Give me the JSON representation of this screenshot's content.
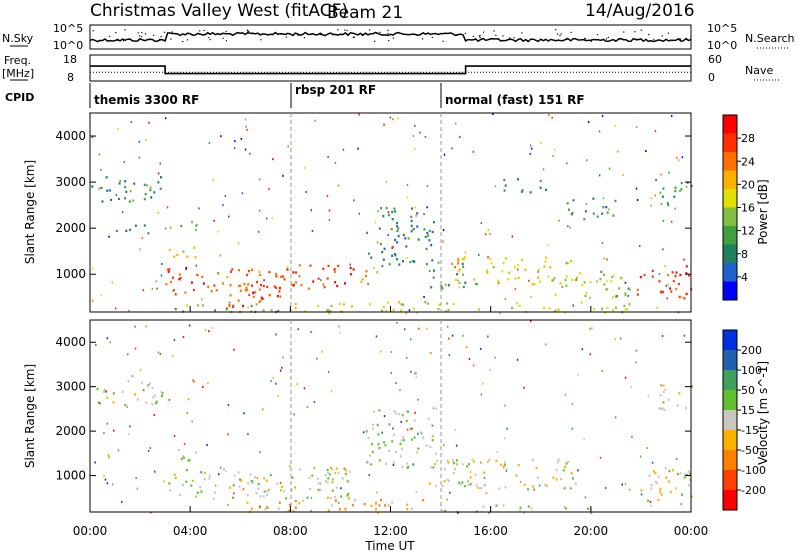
{
  "header": {
    "title": "Christmas Valley West (fitACF)",
    "beam": "Beam 21",
    "date": "14/Aug/2016"
  },
  "param_panels": {
    "nsky": {
      "label": "N.Sky",
      "yticks": [
        "10^5",
        "10^0"
      ]
    },
    "nsearch": {
      "label": "N.Search",
      "yticks": [
        "10^5",
        "10^0"
      ]
    },
    "freq": {
      "label_line1": "Freq.",
      "label_line2": "[MHz]",
      "yticks": [
        "18",
        "8"
      ]
    },
    "nave": {
      "label": "Nave",
      "yticks": [
        "60",
        "0"
      ]
    },
    "cpid": {
      "label": "CPID"
    }
  },
  "chart_data": [
    {
      "type": "line",
      "name": "noise-sky-search",
      "series": [
        {
          "name": "N.Sky"
        },
        {
          "name": "N.Search"
        }
      ],
      "ylim": [
        1,
        100000
      ],
      "log": true
    },
    {
      "type": "line",
      "name": "freq-nave",
      "series": [
        {
          "name": "Freq.",
          "points": [
            [
              0,
              14
            ],
            [
              3,
              14
            ],
            [
              3,
              10
            ],
            [
              15,
              10
            ],
            [
              15,
              14
            ],
            [
              24,
              14
            ]
          ]
        },
        {
          "name": "Nave",
          "points": [
            [
              0,
              20
            ],
            [
              24,
              20
            ]
          ]
        }
      ],
      "xlim": [
        0,
        24
      ]
    },
    {
      "type": "table",
      "name": "cpid",
      "modes": [
        {
          "label": "themis 3300 RF",
          "start": 0,
          "end": 8
        },
        {
          "label": "rbsp 201 RF",
          "start": 8,
          "end": 14
        },
        {
          "label": "normal (fast) 151 RF",
          "start": 14,
          "end": 24
        }
      ]
    },
    {
      "type": "heatmap",
      "name": "power",
      "ylabel": "Slant Range [km]",
      "yticks": [
        "4000",
        "3000",
        "2000",
        "1000"
      ],
      "ylim": [
        180,
        4500
      ],
      "xlim": [
        0,
        24
      ],
      "colorbar": {
        "label": "Power [dB]",
        "ticks": [
          "28",
          "24",
          "20",
          "16",
          "12",
          "8",
          "4"
        ],
        "range": [
          0,
          30
        ],
        "colors": [
          "#0000ff",
          "#2060d0",
          "#208060",
          "#40a040",
          "#80c040",
          "#e0e000",
          "#ffb000",
          "#ff7000",
          "#ff3000",
          "#ff0000"
        ]
      },
      "regions": [
        {
          "x0": 0,
          "x1": 2.9,
          "y0": 2600,
          "y1": 3150,
          "v": 9
        },
        {
          "x0": 0.8,
          "x1": 2.5,
          "y0": 1900,
          "y1": 2100,
          "v": 8
        },
        {
          "x0": 3,
          "x1": 4.4,
          "y0": 1350,
          "y1": 1650,
          "v": 18
        },
        {
          "x0": 3.5,
          "x1": 4.3,
          "y0": 1900,
          "y1": 2200,
          "v": 12
        },
        {
          "x0": 3,
          "x1": 7.9,
          "y0": 500,
          "y1": 1150,
          "v": 24
        },
        {
          "x0": 3,
          "x1": 8,
          "y0": 200,
          "y1": 450,
          "v": 12
        },
        {
          "x0": 5.5,
          "x1": 7.8,
          "y0": 300,
          "y1": 800,
          "v": 26
        },
        {
          "x0": 7.5,
          "x1": 10.5,
          "y0": 700,
          "y1": 1250,
          "v": 26
        },
        {
          "x0": 10.3,
          "x1": 11.5,
          "y0": 800,
          "y1": 1100,
          "v": 20
        },
        {
          "x0": 11,
          "x1": 13.8,
          "y0": 1200,
          "y1": 2500,
          "v": 8
        },
        {
          "x0": 13.5,
          "x1": 15,
          "y0": 700,
          "y1": 1300,
          "v": 10
        },
        {
          "x0": 14.5,
          "x1": 19.5,
          "y0": 800,
          "y1": 1400,
          "v": 18
        },
        {
          "x0": 18.5,
          "x1": 21.5,
          "y0": 500,
          "y1": 1100,
          "v": 14
        },
        {
          "x0": 21.8,
          "x1": 24,
          "y0": 450,
          "y1": 1200,
          "v": 26
        },
        {
          "x0": 8,
          "x1": 22,
          "y0": 180,
          "y1": 420,
          "v": 16
        },
        {
          "x0": 16.5,
          "x1": 18.5,
          "y0": 2800,
          "y1": 3100,
          "v": 9
        },
        {
          "x0": 19,
          "x1": 21,
          "y0": 2200,
          "y1": 2700,
          "v": 8
        },
        {
          "x0": 22.5,
          "x1": 24,
          "y0": 2500,
          "y1": 3100,
          "v": 12
        }
      ]
    },
    {
      "type": "heatmap",
      "name": "velocity",
      "xlabel": "Time UT",
      "ylabel": "Slant Range [km]",
      "xticks": [
        "00:00",
        "04:00",
        "08:00",
        "12:00",
        "16:00",
        "20:00",
        "00:00"
      ],
      "yticks": [
        "4000",
        "3000",
        "2000",
        "1000"
      ],
      "ylim": [
        180,
        4500
      ],
      "xlim": [
        0,
        24
      ],
      "colorbar": {
        "label": "Velocity [m s^-1]",
        "ticks": [
          "200",
          "100",
          "50",
          "15",
          "-15",
          "-50",
          "-100",
          "-200"
        ],
        "range": [
          -250,
          250
        ],
        "colors": [
          "#ff0000",
          "#ff4000",
          "#ff8000",
          "#ffb000",
          "#c8c8c0",
          "#60c030",
          "#40a060",
          "#2060b0",
          "#0030e0"
        ]
      },
      "regions": [
        {
          "x0": 0,
          "x1": 2.9,
          "y0": 2600,
          "y1": 3150,
          "v": 0
        },
        {
          "x0": 3,
          "x1": 4.4,
          "y0": 1350,
          "y1": 1650,
          "v": 0
        },
        {
          "x0": 3,
          "x1": 10.5,
          "y0": 500,
          "y1": 1200,
          "v": 0
        },
        {
          "x0": 5.8,
          "x1": 6.8,
          "y0": 750,
          "y1": 1000,
          "v": 40
        },
        {
          "x0": 11,
          "x1": 13.8,
          "y0": 1200,
          "y1": 2500,
          "v": 30
        },
        {
          "x0": 13.5,
          "x1": 19.5,
          "y0": 700,
          "y1": 1400,
          "v": 0
        },
        {
          "x0": 21.8,
          "x1": 24,
          "y0": 400,
          "y1": 1200,
          "v": 0
        },
        {
          "x0": 6,
          "x1": 14,
          "y0": 180,
          "y1": 480,
          "v": -60
        },
        {
          "x0": 14,
          "x1": 20,
          "y0": 180,
          "y1": 350,
          "v": 20
        },
        {
          "x0": 22.5,
          "x1": 24,
          "y0": 2500,
          "y1": 3100,
          "v": 0
        }
      ]
    }
  ]
}
